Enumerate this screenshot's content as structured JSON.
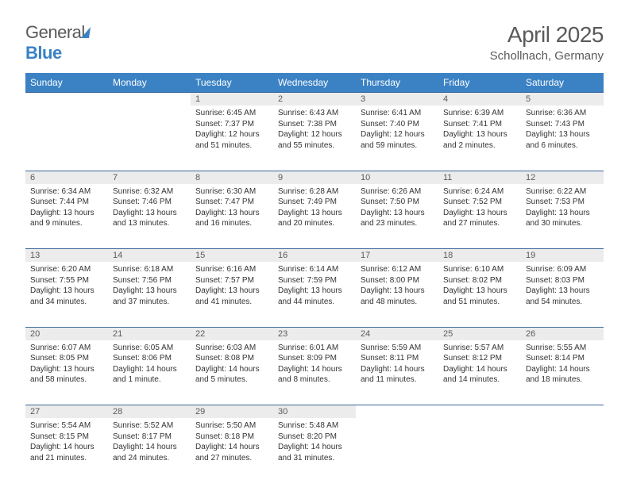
{
  "brand": {
    "part1": "General",
    "part2": "Blue"
  },
  "title": "April 2025",
  "location": "Schollnach, Germany",
  "colors": {
    "header_bg": "#3b82c4",
    "header_text": "#ffffff",
    "daynum_bg": "#ececec",
    "border": "#3b6a9a",
    "text": "#333333",
    "muted": "#5a5a5a"
  },
  "weekdays": [
    "Sunday",
    "Monday",
    "Tuesday",
    "Wednesday",
    "Thursday",
    "Friday",
    "Saturday"
  ],
  "weeks": [
    [
      null,
      null,
      {
        "n": 1,
        "sr": "6:45 AM",
        "ss": "7:37 PM",
        "dl": "12 hours and 51 minutes."
      },
      {
        "n": 2,
        "sr": "6:43 AM",
        "ss": "7:38 PM",
        "dl": "12 hours and 55 minutes."
      },
      {
        "n": 3,
        "sr": "6:41 AM",
        "ss": "7:40 PM",
        "dl": "12 hours and 59 minutes."
      },
      {
        "n": 4,
        "sr": "6:39 AM",
        "ss": "7:41 PM",
        "dl": "13 hours and 2 minutes."
      },
      {
        "n": 5,
        "sr": "6:36 AM",
        "ss": "7:43 PM",
        "dl": "13 hours and 6 minutes."
      }
    ],
    [
      {
        "n": 6,
        "sr": "6:34 AM",
        "ss": "7:44 PM",
        "dl": "13 hours and 9 minutes."
      },
      {
        "n": 7,
        "sr": "6:32 AM",
        "ss": "7:46 PM",
        "dl": "13 hours and 13 minutes."
      },
      {
        "n": 8,
        "sr": "6:30 AM",
        "ss": "7:47 PM",
        "dl": "13 hours and 16 minutes."
      },
      {
        "n": 9,
        "sr": "6:28 AM",
        "ss": "7:49 PM",
        "dl": "13 hours and 20 minutes."
      },
      {
        "n": 10,
        "sr": "6:26 AM",
        "ss": "7:50 PM",
        "dl": "13 hours and 23 minutes."
      },
      {
        "n": 11,
        "sr": "6:24 AM",
        "ss": "7:52 PM",
        "dl": "13 hours and 27 minutes."
      },
      {
        "n": 12,
        "sr": "6:22 AM",
        "ss": "7:53 PM",
        "dl": "13 hours and 30 minutes."
      }
    ],
    [
      {
        "n": 13,
        "sr": "6:20 AM",
        "ss": "7:55 PM",
        "dl": "13 hours and 34 minutes."
      },
      {
        "n": 14,
        "sr": "6:18 AM",
        "ss": "7:56 PM",
        "dl": "13 hours and 37 minutes."
      },
      {
        "n": 15,
        "sr": "6:16 AM",
        "ss": "7:57 PM",
        "dl": "13 hours and 41 minutes."
      },
      {
        "n": 16,
        "sr": "6:14 AM",
        "ss": "7:59 PM",
        "dl": "13 hours and 44 minutes."
      },
      {
        "n": 17,
        "sr": "6:12 AM",
        "ss": "8:00 PM",
        "dl": "13 hours and 48 minutes."
      },
      {
        "n": 18,
        "sr": "6:10 AM",
        "ss": "8:02 PM",
        "dl": "13 hours and 51 minutes."
      },
      {
        "n": 19,
        "sr": "6:09 AM",
        "ss": "8:03 PM",
        "dl": "13 hours and 54 minutes."
      }
    ],
    [
      {
        "n": 20,
        "sr": "6:07 AM",
        "ss": "8:05 PM",
        "dl": "13 hours and 58 minutes."
      },
      {
        "n": 21,
        "sr": "6:05 AM",
        "ss": "8:06 PM",
        "dl": "14 hours and 1 minute."
      },
      {
        "n": 22,
        "sr": "6:03 AM",
        "ss": "8:08 PM",
        "dl": "14 hours and 5 minutes."
      },
      {
        "n": 23,
        "sr": "6:01 AM",
        "ss": "8:09 PM",
        "dl": "14 hours and 8 minutes."
      },
      {
        "n": 24,
        "sr": "5:59 AM",
        "ss": "8:11 PM",
        "dl": "14 hours and 11 minutes."
      },
      {
        "n": 25,
        "sr": "5:57 AM",
        "ss": "8:12 PM",
        "dl": "14 hours and 14 minutes."
      },
      {
        "n": 26,
        "sr": "5:55 AM",
        "ss": "8:14 PM",
        "dl": "14 hours and 18 minutes."
      }
    ],
    [
      {
        "n": 27,
        "sr": "5:54 AM",
        "ss": "8:15 PM",
        "dl": "14 hours and 21 minutes."
      },
      {
        "n": 28,
        "sr": "5:52 AM",
        "ss": "8:17 PM",
        "dl": "14 hours and 24 minutes."
      },
      {
        "n": 29,
        "sr": "5:50 AM",
        "ss": "8:18 PM",
        "dl": "14 hours and 27 minutes."
      },
      {
        "n": 30,
        "sr": "5:48 AM",
        "ss": "8:20 PM",
        "dl": "14 hours and 31 minutes."
      },
      null,
      null,
      null
    ]
  ],
  "labels": {
    "sunrise": "Sunrise:",
    "sunset": "Sunset:",
    "daylight": "Daylight:"
  }
}
